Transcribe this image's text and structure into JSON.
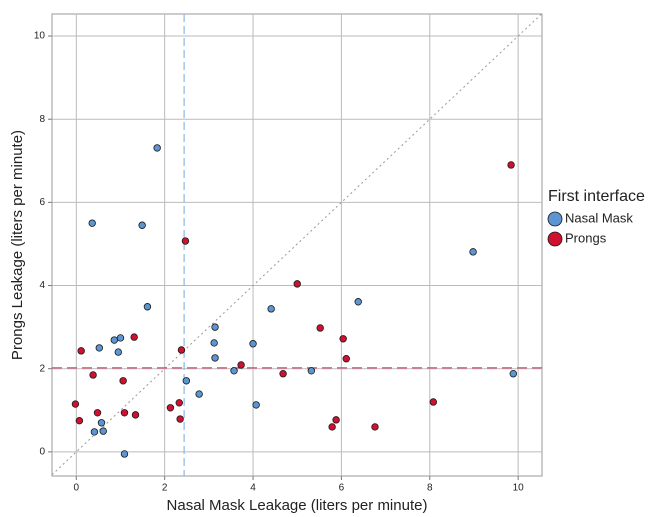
{
  "chart_data": {
    "type": "scatter",
    "x_label": "Nasal Mask Leakage (liters per minute)",
    "y_label": "Prongs Leakage (liters per minute)",
    "legend_title": "First interface",
    "legend_position": "right",
    "xlim": [
      -0.55,
      10.54
    ],
    "ylim": [
      -0.58,
      10.53
    ],
    "xticks": [
      0,
      2,
      4,
      6,
      8,
      10
    ],
    "yticks": [
      0,
      2,
      4,
      6,
      8,
      10
    ],
    "grid": true,
    "identity_line": true,
    "reference_lines": {
      "x": 2.44,
      "y": 2.02
    },
    "series": [
      {
        "name": "Nasal Mask",
        "color": "#5b95d3",
        "x": [
          0.36,
          1.49,
          1.83,
          1.61,
          0.52,
          0.86,
          1.0,
          0.95,
          0.41,
          0.57,
          0.61,
          1.09,
          2.49,
          2.78,
          3.14,
          3.12,
          3.14,
          3.57,
          4.0,
          4.07,
          4.41,
          5.32,
          6.38,
          8.98,
          9.89
        ],
        "values": [
          5.5,
          5.45,
          7.31,
          3.49,
          2.5,
          2.69,
          2.74,
          2.4,
          0.48,
          0.7,
          0.5,
          -0.05,
          1.71,
          1.39,
          3.0,
          2.62,
          2.26,
          1.95,
          2.6,
          1.13,
          3.44,
          1.95,
          3.61,
          4.81,
          1.88
        ]
      },
      {
        "name": "Prongs",
        "color": "#cf1030",
        "x": [
          2.47,
          9.84,
          5.0,
          5.52,
          6.04,
          6.11,
          4.68,
          3.73,
          2.38,
          1.31,
          0.11,
          0.38,
          1.06,
          -0.02,
          0.07,
          0.48,
          1.09,
          1.34,
          2.13,
          2.33,
          2.35,
          5.88,
          5.79,
          6.76,
          8.08
        ],
        "values": [
          5.07,
          6.9,
          4.04,
          2.98,
          2.72,
          2.24,
          1.88,
          2.09,
          2.45,
          2.76,
          2.43,
          1.85,
          1.71,
          1.15,
          0.75,
          0.94,
          0.94,
          0.89,
          1.06,
          1.18,
          0.79,
          0.77,
          0.6,
          0.6,
          1.2
        ]
      }
    ]
  }
}
